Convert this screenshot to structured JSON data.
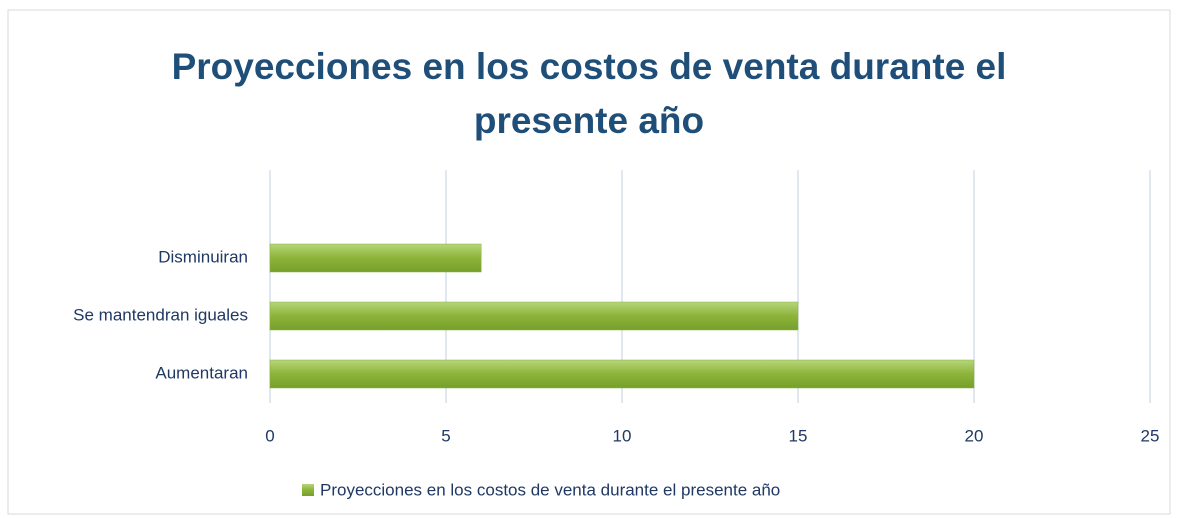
{
  "chart_data": {
    "type": "bar",
    "orientation": "horizontal",
    "title": "Proyecciones en los costos de venta durante el presente año",
    "categories": [
      "Disminuiran",
      "Se mantendran iguales",
      "Aumentaran"
    ],
    "series": [
      {
        "name": "Proyecciones en los costos de venta durante el presente año",
        "color": "#8db33a",
        "values": [
          6,
          15,
          20
        ]
      }
    ],
    "xlim": [
      0,
      25
    ],
    "xticks": [
      0,
      5,
      10,
      15,
      20,
      25
    ],
    "grid": true,
    "legend": "bottom"
  }
}
